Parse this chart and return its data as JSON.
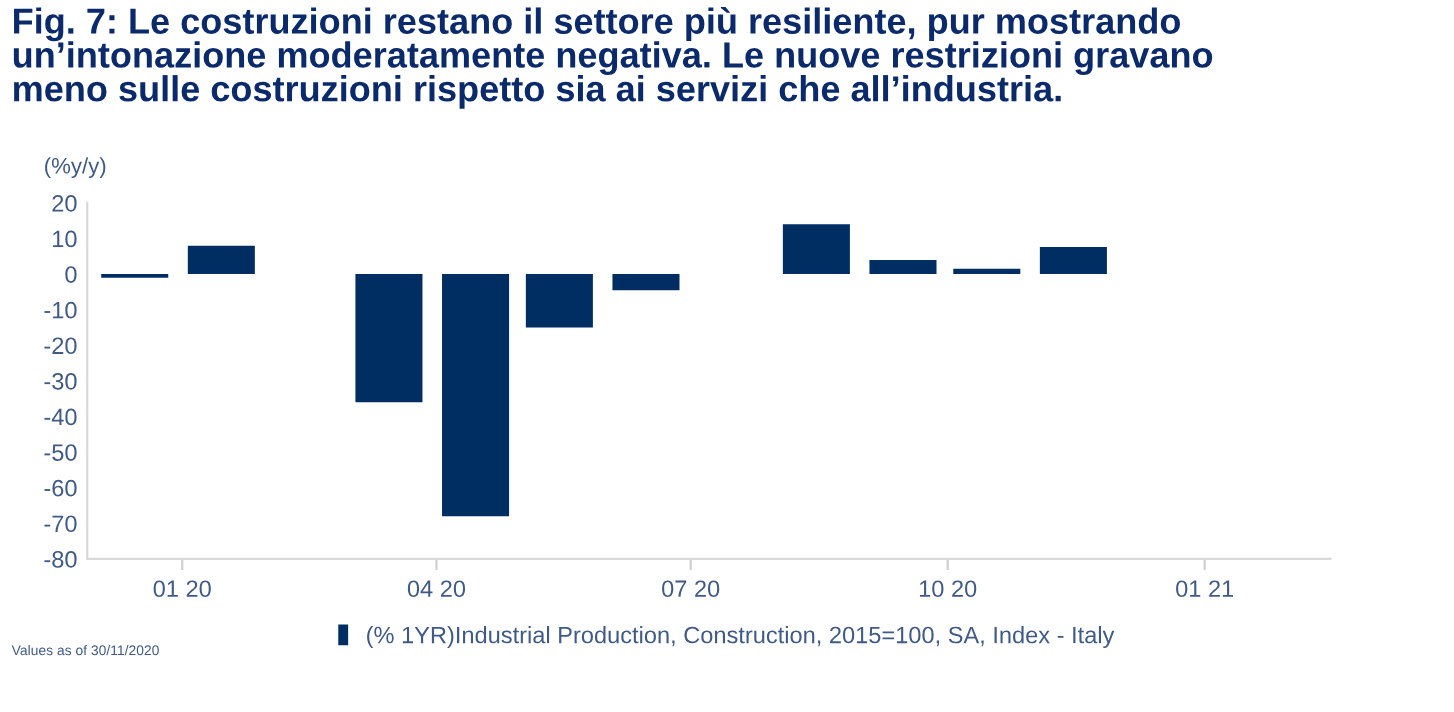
{
  "chart_data": {
    "type": "bar",
    "title": "Fig. 7: Le costruzioni restano il settore più resiliente, pur mostrando\nun’intonazione moderatamente negativa. Le nuove restrizioni gravano\nmeno sulle costruzioni rispetto sia ai servizi che all’industria.",
    "ylabel": "(%y/y)",
    "x": [
      "2019-12-15",
      "2020-01-15",
      "2020-03-15",
      "2020-04-15",
      "2020-05-15",
      "2020-06-15",
      "2020-08-15",
      "2020-09-15",
      "2020-10-15",
      "2020-11-15"
    ],
    "series": [
      {
        "name": "(% 1YR)Industrial Production, Construction, 2015=100, SA, Index - Italy",
        "color": "#002d62",
        "values": [
          -1,
          8,
          -36,
          -68,
          -15,
          -4.5,
          14,
          4,
          1.5,
          7.6
        ]
      }
    ],
    "xlim": [
      "2019-11-28",
      "2021-02-15"
    ],
    "xticks": [
      {
        "value": "2020-01-01",
        "label": "01 20"
      },
      {
        "value": "2020-04-01",
        "label": "04 20"
      },
      {
        "value": "2020-07-01",
        "label": "07 20"
      },
      {
        "value": "2020-10-01",
        "label": "10 20"
      },
      {
        "value": "2021-01-01",
        "label": "01 21"
      }
    ],
    "ylim": [
      -80,
      20
    ],
    "yticks": [
      -80,
      -70,
      -60,
      -50,
      -40,
      -30,
      -20,
      -10,
      0,
      10,
      20
    ],
    "grid": false,
    "legend": "bottom",
    "annotations": [
      "Values as of 30/11/2020"
    ]
  }
}
